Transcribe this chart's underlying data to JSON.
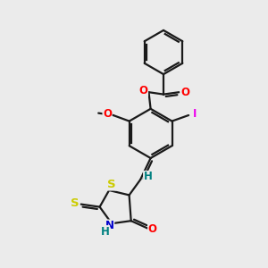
{
  "bg_color": "#ebebeb",
  "bond_color": "#1a1a1a",
  "lw": 1.6,
  "atom_colors": {
    "O": "#ff0000",
    "N": "#0000cd",
    "S": "#cccc00",
    "I": "#ee00ee",
    "H": "#008080",
    "C": "#1a1a1a"
  },
  "fs": 8.5
}
